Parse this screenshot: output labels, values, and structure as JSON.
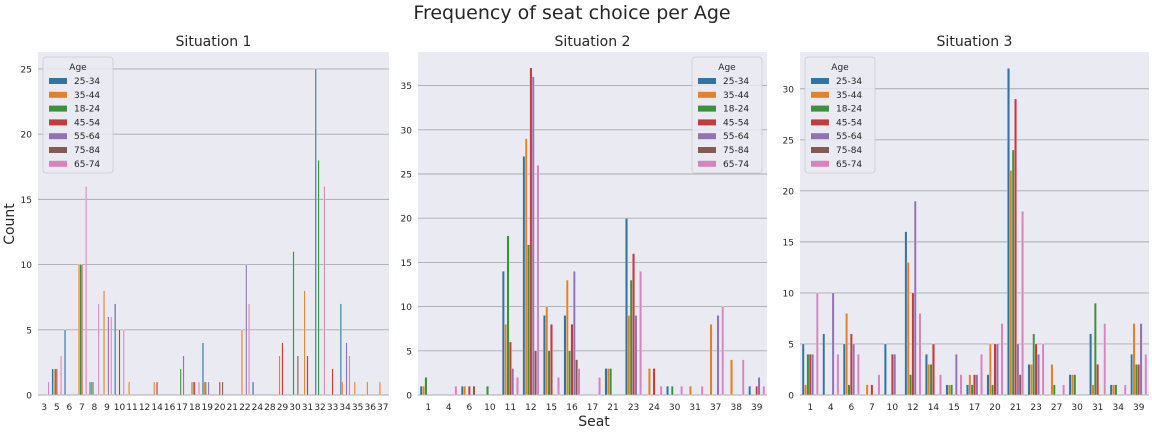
{
  "chart_data": {
    "type": "bar",
    "title": "Frequency of seat choice per Age",
    "xlabel": "Seat",
    "ylabel": "Count",
    "legend_title": "Age",
    "series_names": [
      "25-34",
      "35-44",
      "18-24",
      "45-54",
      "55-64",
      "75-84",
      "65-74"
    ],
    "colors": [
      "#3274a1",
      "#e1812c",
      "#3a923a",
      "#c03d3e",
      "#9372b2",
      "#845b53",
      "#d684bd"
    ],
    "grid": true,
    "panels": [
      {
        "title": "Situation 1",
        "legend_position": "top-left",
        "ylim": [
          0,
          26.3
        ],
        "yticks": [
          0,
          5,
          10,
          15,
          20,
          25
        ],
        "categories": [
          "3",
          "5",
          "6",
          "7",
          "8",
          "9",
          "10",
          "11",
          "12",
          "14",
          "16",
          "17",
          "18",
          "19",
          "20",
          "21",
          "22",
          "24",
          "28",
          "29",
          "30",
          "31",
          "32",
          "33",
          "34",
          "35",
          "36",
          "37"
        ],
        "series": [
          {
            "name": "25-34",
            "values": [
              0,
              2,
              5,
              0,
              1,
              0,
              7,
              0,
              0,
              0,
              0,
              0,
              0,
              4,
              0,
              0,
              0,
              1,
              0,
              0,
              0,
              0,
              25,
              0,
              7,
              0,
              0,
              0
            ]
          },
          {
            "name": "35-44",
            "values": [
              0,
              2,
              0,
              10,
              1,
              8,
              0,
              1,
              0,
              1,
              0,
              0,
              1,
              1,
              0,
              0,
              5,
              0,
              0,
              3,
              0,
              8,
              0,
              0,
              1,
              1,
              1,
              1
            ]
          },
          {
            "name": "18-24",
            "values": [
              0,
              2,
              0,
              10,
              1,
              0,
              0,
              0,
              0,
              0,
              0,
              2,
              1,
              1,
              0,
              0,
              0,
              0,
              0,
              0,
              11,
              0,
              18,
              0,
              0,
              0,
              0,
              0
            ]
          },
          {
            "name": "45-54",
            "values": [
              0,
              2,
              0,
              10,
              0,
              0,
              5,
              0,
              0,
              1,
              0,
              0,
              1,
              0,
              1,
              0,
              0,
              0,
              0,
              4,
              0,
              3,
              0,
              2,
              0,
              0,
              0,
              0
            ]
          },
          {
            "name": "55-64",
            "values": [
              0,
              0,
              0,
              0,
              0,
              6,
              0,
              0,
              0,
              0,
              0,
              3,
              0,
              1,
              0,
              0,
              10,
              0,
              0,
              0,
              0,
              0,
              0,
              0,
              4,
              0,
              0,
              0
            ]
          },
          {
            "name": "75-84",
            "values": [
              0,
              0,
              0,
              0,
              0,
              0,
              0,
              0,
              0,
              0,
              0,
              0,
              0,
              0,
              1,
              0,
              0,
              0,
              0,
              0,
              3,
              0,
              0,
              0,
              0,
              0,
              0,
              0
            ]
          },
          {
            "name": "65-74",
            "values": [
              1,
              3,
              0,
              16,
              7,
              6,
              5,
              0,
              0,
              0,
              0,
              0,
              1,
              0,
              0,
              0,
              7,
              0,
              0,
              0,
              0,
              0,
              16,
              0,
              3,
              0,
              0,
              0
            ]
          }
        ]
      },
      {
        "title": "Situation 2",
        "legend_position": "top-right",
        "ylim": [
          0,
          38.8
        ],
        "yticks": [
          0,
          5,
          10,
          15,
          20,
          25,
          30,
          35
        ],
        "categories": [
          "1",
          "4",
          "6",
          "10",
          "11",
          "12",
          "15",
          "16",
          "17",
          "21",
          "23",
          "24",
          "30",
          "31",
          "37",
          "38",
          "39"
        ],
        "series": [
          {
            "name": "25-34",
            "values": [
              1,
              0,
              1,
              0,
              14,
              27,
              9,
              9,
              0,
              3,
              20,
              0,
              1,
              0,
              0,
              0,
              1
            ]
          },
          {
            "name": "35-44",
            "values": [
              1,
              0,
              1,
              0,
              8,
              29,
              10,
              13,
              0,
              3,
              9,
              3,
              0,
              1,
              8,
              4,
              0
            ]
          },
          {
            "name": "18-24",
            "values": [
              2,
              0,
              0,
              1,
              18,
              17,
              5,
              5,
              0,
              3,
              13,
              0,
              1,
              0,
              0,
              0,
              0
            ]
          },
          {
            "name": "45-54",
            "values": [
              0,
              0,
              1,
              0,
              6,
              37,
              8,
              8,
              0,
              0,
              16,
              3,
              0,
              0,
              0,
              0,
              1
            ]
          },
          {
            "name": "55-64",
            "values": [
              0,
              0,
              0,
              0,
              3,
              36,
              0,
              14,
              0,
              0,
              9,
              0,
              0,
              0,
              9,
              0,
              2
            ]
          },
          {
            "name": "75-84",
            "values": [
              0,
              0,
              1,
              0,
              0,
              5,
              0,
              4,
              0,
              0,
              0,
              0,
              0,
              0,
              0,
              0,
              0
            ]
          },
          {
            "name": "65-74",
            "values": [
              0,
              1,
              0,
              0,
              2,
              26,
              2,
              3,
              2,
              0,
              14,
              1,
              1,
              1,
              10,
              4,
              1
            ]
          }
        ]
      },
      {
        "title": "Situation 3",
        "legend_position": "top-left",
        "ylim": [
          0,
          33.6
        ],
        "yticks": [
          0,
          5,
          10,
          15,
          20,
          25,
          30
        ],
        "categories": [
          "1",
          "4",
          "6",
          "7",
          "10",
          "12",
          "14",
          "15",
          "17",
          "20",
          "21",
          "23",
          "27",
          "30",
          "31",
          "34",
          "39"
        ],
        "series": [
          {
            "name": "25-34",
            "values": [
              5,
              6,
              5,
              0,
              5,
              16,
              4,
              1,
              1,
              2,
              32,
              3,
              0,
              2,
              6,
              1,
              4
            ]
          },
          {
            "name": "35-44",
            "values": [
              1,
              0,
              8,
              1,
              0,
              13,
              3,
              1,
              2,
              5,
              22,
              3,
              3,
              2,
              1,
              1,
              7
            ]
          },
          {
            "name": "18-24",
            "values": [
              4,
              0,
              1,
              0,
              0,
              2,
              3,
              1,
              1,
              1,
              24,
              6,
              1,
              2,
              9,
              1,
              3
            ]
          },
          {
            "name": "45-54",
            "values": [
              4,
              0,
              6,
              1,
              4,
              10,
              5,
              0,
              2,
              5,
              29,
              5,
              0,
              0,
              3,
              0,
              3
            ]
          },
          {
            "name": "55-64",
            "values": [
              4,
              10,
              5,
              0,
              4,
              19,
              0,
              4,
              2,
              5,
              5,
              4,
              0,
              0,
              0,
              0,
              7
            ]
          },
          {
            "name": "75-84",
            "values": [
              0,
              0,
              0,
              0,
              0,
              0,
              0,
              0,
              0,
              0,
              2,
              0,
              0,
              0,
              0,
              0,
              0
            ]
          },
          {
            "name": "65-74",
            "values": [
              10,
              4,
              4,
              2,
              0,
              8,
              2,
              2,
              4,
              7,
              18,
              5,
              1,
              0,
              7,
              1,
              4
            ]
          }
        ]
      }
    ]
  }
}
